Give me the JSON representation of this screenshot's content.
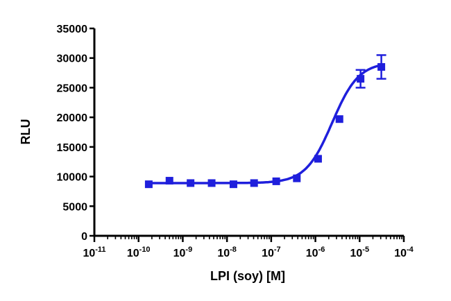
{
  "chart_data": {
    "type": "scatter",
    "title": "",
    "xlabel": "LPI (soy) [M]",
    "ylabel": "RLU",
    "x_scale": "log",
    "xlim": [
      1e-11,
      0.0001
    ],
    "ylim": [
      0,
      35000
    ],
    "grid": false,
    "legend": "none",
    "color": "#1f1fdc",
    "x_ticks": [
      {
        "value": 1e-11,
        "base": "10",
        "exp": "-11"
      },
      {
        "value": 1e-10,
        "base": "10",
        "exp": "-10"
      },
      {
        "value": 1e-09,
        "base": "10",
        "exp": "-9"
      },
      {
        "value": 1e-08,
        "base": "10",
        "exp": "-8"
      },
      {
        "value": 1e-07,
        "base": "10",
        "exp": "-7"
      },
      {
        "value": 1e-06,
        "base": "10",
        "exp": "-6"
      },
      {
        "value": 1e-05,
        "base": "10",
        "exp": "-5"
      },
      {
        "value": 0.0001,
        "base": "10",
        "exp": "-4"
      }
    ],
    "y_ticks": [
      0,
      5000,
      10000,
      15000,
      20000,
      25000,
      30000,
      35000
    ],
    "y_tick_labels": [
      "0",
      "5000",
      "10000",
      "15000",
      "20000",
      "25000",
      "30000",
      "35000"
    ],
    "series": [
      {
        "points": [
          {
            "x": 1.7e-10,
            "y": 8700,
            "err": 0
          },
          {
            "x": 5e-10,
            "y": 9300,
            "err": 0
          },
          {
            "x": 1.5e-09,
            "y": 8900,
            "err": 0
          },
          {
            "x": 4.5e-09,
            "y": 8900,
            "err": 0
          },
          {
            "x": 1.4e-08,
            "y": 8700,
            "err": 0
          },
          {
            "x": 4.1e-08,
            "y": 8900,
            "err": 0
          },
          {
            "x": 1.3e-07,
            "y": 9200,
            "err": 0
          },
          {
            "x": 3.8e-07,
            "y": 9700,
            "err": 0
          },
          {
            "x": 1.15e-06,
            "y": 13000,
            "err": 0
          },
          {
            "x": 3.5e-06,
            "y": 19700,
            "err": 0
          },
          {
            "x": 1.05e-05,
            "y": 26500,
            "err": 1500
          },
          {
            "x": 3.1e-05,
            "y": 28500,
            "err": 2000
          }
        ],
        "fit": {
          "bottom": 8900,
          "top": 29300,
          "log_ec50": -5.62,
          "hill": 1.45
        }
      }
    ]
  }
}
